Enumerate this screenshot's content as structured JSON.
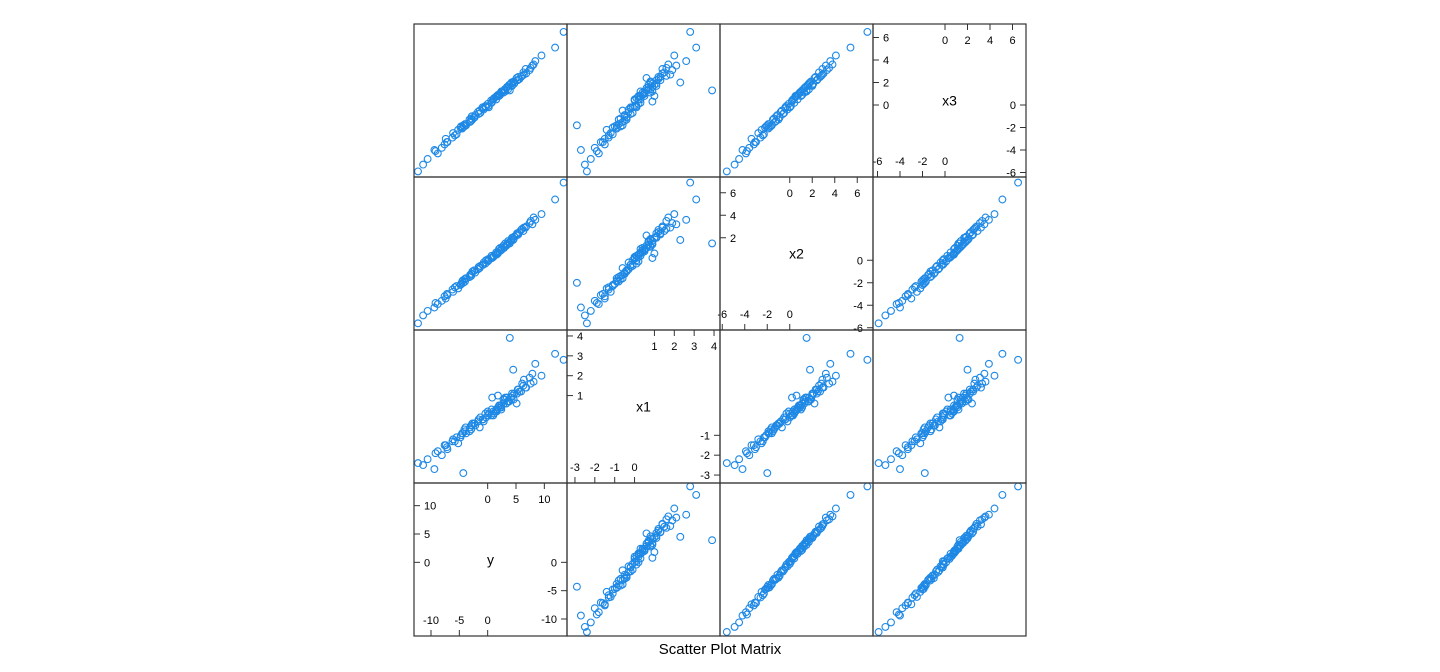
{
  "chart_data": {
    "type": "scatter",
    "subtype": "scatter-plot-matrix",
    "title": "Scatter Plot Matrix",
    "variables": [
      "x3",
      "x2",
      "x1",
      "y"
    ],
    "layout": {
      "rows_top_to_bottom": [
        "x3",
        "x2",
        "x1",
        "y"
      ],
      "cols_left_to_right": [
        "y",
        "x1",
        "x2",
        "x3"
      ],
      "diagonal": "variable names with axis ticks"
    },
    "point_color": "#1E88E5",
    "axes": {
      "y": {
        "range": [
          -13,
          14
        ],
        "ticks_low": [
          -10,
          -5,
          0
        ],
        "ticks_high": [
          0,
          5,
          10
        ],
        "diag_label": "y"
      },
      "x1": {
        "range": [
          -3.4,
          4.3
        ],
        "ticks_low": [
          -3,
          -2,
          -1,
          0
        ],
        "ticks_high": [
          1,
          2,
          3,
          4
        ],
        "diag_label": "x1"
      },
      "x2": {
        "range": [
          -6.2,
          7.4
        ],
        "ticks_low": [
          -6,
          -4,
          -2,
          0
        ],
        "ticks_high": [
          0,
          2,
          4,
          6
        ],
        "diag_label": "x2"
      },
      "x3": {
        "range": [
          -6.4,
          7.2
        ],
        "ticks_low": [
          -6,
          -4,
          -2,
          0
        ],
        "ticks_high": [
          0,
          2,
          4,
          6
        ],
        "diag_label": "x3"
      }
    },
    "data": {
      "x1": [
        0.2,
        -0.5,
        1.1,
        -1.3,
        0.6,
        0.9,
        -0.2,
        1.6,
        -0.8,
        0.3,
        2.1,
        -1.7,
        0.0,
        0.7,
        -0.4,
        1.3,
        -2.2,
        0.5,
        -0.9,
        0.1,
        1.8,
        -1.1,
        0.4,
        -0.6,
        0.8,
        2.6,
        -0.3,
        1.0,
        -1.5,
        0.2,
        3.9,
        -2.9,
        0.6,
        -0.1,
        1.4,
        -0.7,
        0.9,
        -1.9,
        0.3,
        1.2,
        -0.5,
        0.0,
        2.3,
        -1.2,
        0.7,
        -0.2,
        1.5,
        -0.9,
        0.4,
        -2.5,
        1.1,
        0.1,
        -0.4,
        0.8,
        -1.4,
        1.9,
        -0.8,
        0.5,
        -0.1,
        1.3,
        -2.0,
        0.2,
        0.9,
        -0.6,
        1.7,
        -1.0,
        0.3,
        2.8,
        -1.6,
        0.6,
        -0.3,
        1.0,
        -2.4,
        0.4,
        0.0,
        1.2,
        -0.7,
        0.8,
        -1.3,
        2.0,
        0.1,
        -0.5,
        1.4,
        -1.8,
        0.5,
        -0.2,
        0.9,
        -1.1,
        3.1,
        0.3,
        -0.9,
        1.6,
        -0.4,
        0.7,
        -2.7,
        1.1,
        0.2,
        -0.6,
        0.8,
        -1.5
      ],
      "x2": [
        0.5,
        -1.2,
        2.1,
        -2.6,
        1.3,
        0.2,
        -0.4,
        2.8,
        -1.9,
        1.0,
        3.2,
        -3.1,
        0.1,
        1.7,
        -0.9,
        2.4,
        -4.5,
        0.8,
        -1.6,
        0.4,
        2.9,
        -2.3,
        1.1,
        -0.7,
        1.9,
        3.6,
        -0.2,
        0.6,
        -3.4,
        -0.1,
        1.5,
        -2.0,
        2.2,
        0.0,
        3.0,
        -1.4,
        1.4,
        -3.8,
        0.7,
        2.5,
        -1.1,
        0.3,
        1.8,
        -2.8,
        1.6,
        -0.6,
        2.6,
        -1.8,
        0.9,
        -4.9,
        2.0,
        -0.3,
        -1.0,
        1.2,
        -2.5,
        3.3,
        -1.5,
        1.0,
        -0.5,
        2.3,
        -3.6,
        0.5,
        1.5,
        -1.3,
        3.8,
        -2.1,
        0.4,
        6.9,
        -3.0,
        1.1,
        -0.8,
        2.0,
        -5.6,
        0.7,
        0.2,
        2.7,
        -1.7,
        1.3,
        -2.4,
        4.1,
        0.0,
        -1.2,
        2.9,
        -3.9,
        0.9,
        -0.4,
        1.7,
        -2.2,
        5.4,
        0.6,
        -1.9,
        3.5,
        -0.9,
        1.4,
        -4.2,
        2.4,
        0.3,
        -1.6,
        1.8,
        -3.2
      ],
      "x3": [
        0.8,
        -1.0,
        1.9,
        -2.9,
        1.5,
        0.3,
        -0.2,
        2.6,
        -1.7,
        1.2,
        3.5,
        -3.3,
        -0.1,
        1.4,
        -1.1,
        2.2,
        -4.8,
        1.0,
        -1.8,
        0.6,
        2.7,
        -2.6,
        0.9,
        -0.5,
        2.1,
        3.9,
        -0.4,
        0.8,
        -3.0,
        0.1,
        1.3,
        -1.8,
        2.4,
        -0.2,
        2.8,
        -1.2,
        1.6,
        -4.1,
        0.5,
        2.3,
        -0.9,
        0.5,
        2.0,
        -2.5,
        1.8,
        -0.8,
        2.9,
        -2.0,
        1.1,
        -5.3,
        1.7,
        -0.1,
        -1.3,
        1.4,
        -2.2,
        3.1,
        -1.3,
        0.8,
        -0.7,
        2.5,
        -3.8,
        0.7,
        1.2,
        -1.5,
        3.6,
        -1.9,
        0.2,
        6.5,
        -3.3,
        1.3,
        -0.6,
        1.8,
        -5.9,
        0.9,
        0.4,
        2.5,
        -1.9,
        1.1,
        -2.7,
        4.4,
        -0.2,
        -1.4,
        3.2,
        -4.3,
        1.1,
        -0.3,
        1.9,
        -2.0,
        5.1,
        0.8,
        -2.1,
        3.3,
        -1.1,
        1.6,
        -4.0,
        2.2,
        0.5,
        -1.8,
        2.0,
        -3.5
      ],
      "y": [
        1.6,
        -2.8,
        4.7,
        -6.2,
        3.3,
        0.8,
        -0.9,
        6.1,
        -4.0,
        2.4,
        7.9,
        -7.1,
        0.1,
        3.6,
        -2.3,
        5.3,
        -10.6,
        2.1,
        -3.8,
        1.1,
        6.4,
        -5.5,
        2.2,
        -1.4,
        4.6,
        8.4,
        -0.7,
        1.8,
        -7.4,
        0.0,
        3.9,
        -4.3,
        5.1,
        -0.3,
        6.8,
        -2.9,
        3.4,
        -9.2,
        1.5,
        5.6,
        -2.2,
        1.0,
        4.5,
        -6.1,
        3.8,
        -1.6,
        6.3,
        -4.4,
        2.4,
        -11.4,
        4.3,
        -0.4,
        -2.7,
        3.0,
        -5.2,
        7.4,
        -3.2,
        2.0,
        -1.3,
        5.4,
        -8.1,
        1.4,
        3.1,
        -3.1,
        8.1,
        -4.7,
        0.7,
        13.4,
        -7.2,
        2.9,
        -1.7,
        4.4,
        -12.3,
        1.8,
        0.6,
        5.9,
        -4.1,
        2.8,
        -5.8,
        9.5,
        0.2,
        -2.9,
        6.7,
        -8.8,
        2.4,
        -0.8,
        4.1,
        -4.8,
        11.9,
        1.7,
        -4.5,
        7.6,
        -2.4,
        3.5,
        -9.4,
        5.2,
        1.0,
        -3.9,
        4.2,
        -7.6
      ]
    }
  }
}
